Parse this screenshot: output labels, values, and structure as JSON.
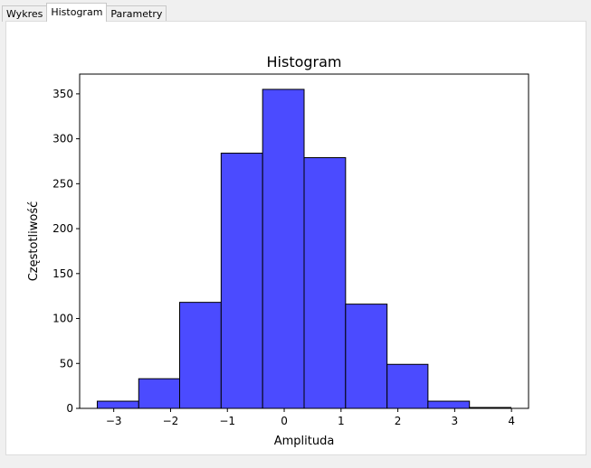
{
  "tabs": [
    {
      "label": "Wykres",
      "active": false
    },
    {
      "label": "Histogram",
      "active": true
    },
    {
      "label": "Parametry",
      "active": false
    }
  ],
  "colors": {
    "bar_fill": "#4b4bff",
    "bar_stroke": "#000000",
    "panel_bg": "#ffffff",
    "window_bg": "#f0f0f0"
  },
  "chart_data": {
    "type": "bar",
    "title": "Histogram",
    "xlabel": "Amplituda",
    "ylabel": "Częstotliwość",
    "xlim": [
      -3.6,
      4.3
    ],
    "ylim": [
      0,
      372
    ],
    "x_ticks": [
      -3,
      -2,
      -1,
      0,
      1,
      2,
      3,
      4
    ],
    "x_tick_labels": [
      "−3",
      "−2",
      "−1",
      "0",
      "1",
      "2",
      "3",
      "4"
    ],
    "y_ticks": [
      0,
      50,
      100,
      150,
      200,
      250,
      300,
      350
    ],
    "y_tick_labels": [
      "0",
      "50",
      "100",
      "150",
      "200",
      "250",
      "300",
      "350"
    ],
    "bin_edges": [
      -3.29,
      -2.56,
      -1.84,
      -1.11,
      -0.38,
      0.35,
      1.08,
      1.81,
      2.53,
      3.26,
      3.99
    ],
    "values": [
      8,
      33,
      118,
      284,
      355,
      279,
      116,
      49,
      8,
      1
    ],
    "grid": false,
    "legend": "none"
  }
}
